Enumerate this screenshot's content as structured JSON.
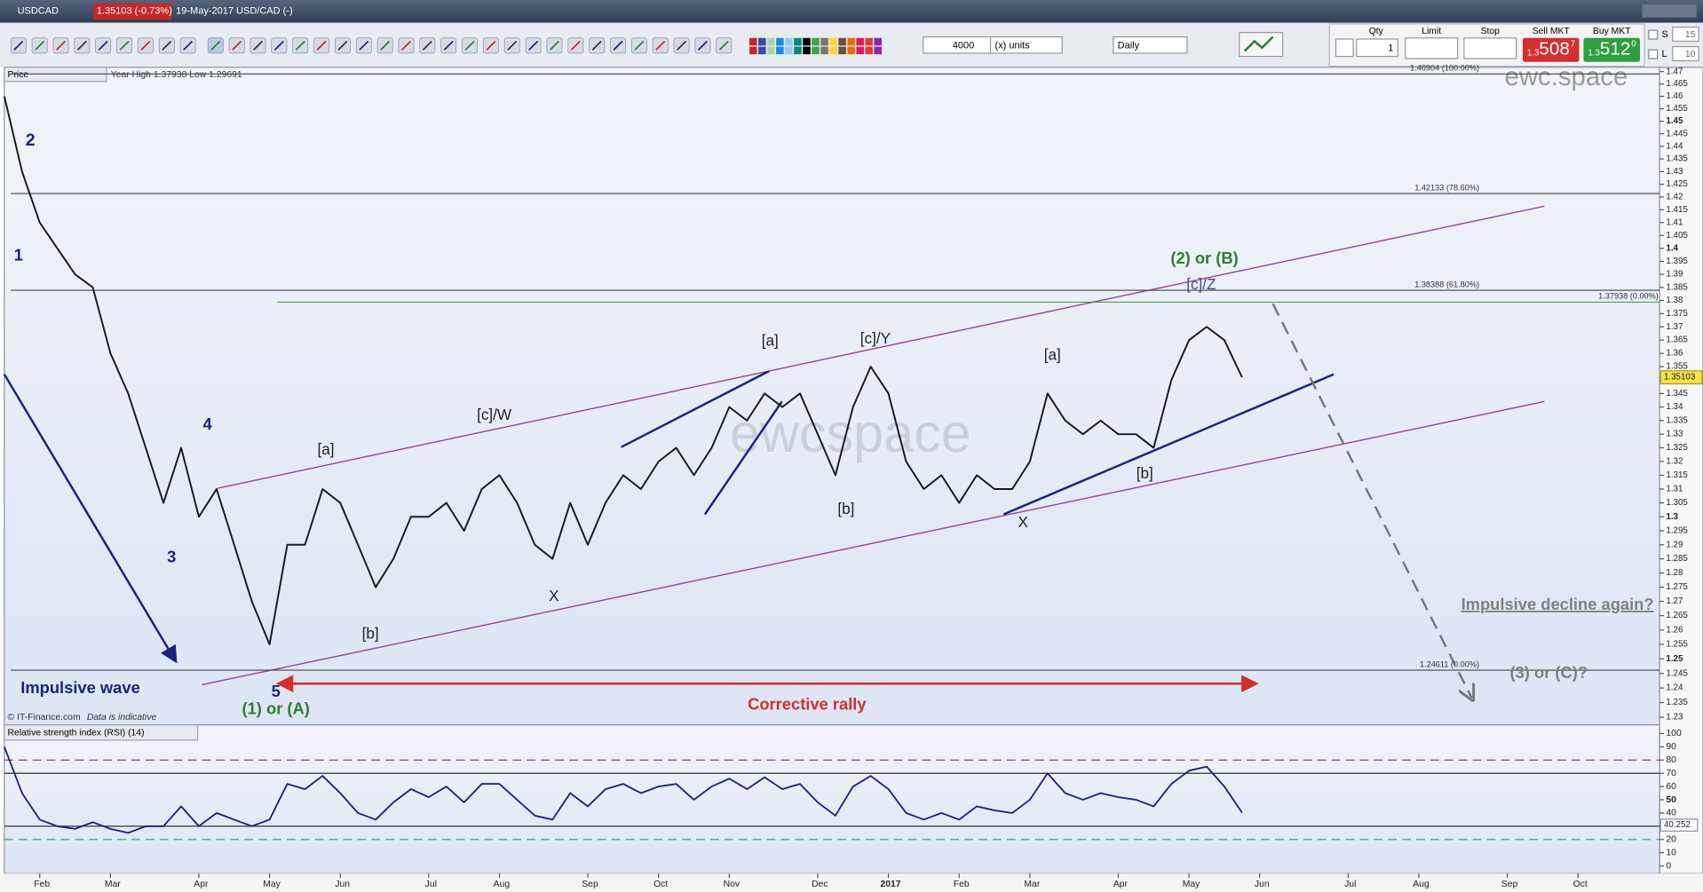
{
  "header": {
    "symbol": "USDCAD",
    "price_change": "1.35103 (-0.73%)",
    "info": "19-May-2017 USD/CAD (-)"
  },
  "toolbar": {
    "quantity": "4000",
    "units": "(x) units",
    "interval": "Daily",
    "qty_label": "Qty",
    "limit_label": "Limit",
    "stop_label": "Stop",
    "sell_label": "Sell MKT",
    "buy_label": "Buy MKT",
    "qty": "1",
    "sell_price": [
      "1.3",
      "508",
      "7"
    ],
    "buy_price": [
      "1.3",
      "512",
      "0"
    ],
    "s_label": "S",
    "s_value": "15",
    "l_label": "L",
    "l_value": "10"
  },
  "chart_data": [
    {
      "type": "line",
      "panel_label": "Price",
      "stats": "Year High 1.37938 Low 1.29691",
      "source": "© IT-Finance.com",
      "note": "Data is indicative",
      "watermark": "ewc.space",
      "watermark_center": "ewcspace",
      "log_scale": true,
      "series": [
        {
          "color": "#1a1a1a",
          "values": [
            1.46,
            1.43,
            1.41,
            1.4,
            1.39,
            1.385,
            1.36,
            1.345,
            1.325,
            1.305,
            1.325,
            1.3,
            1.31,
            1.29,
            1.27,
            1.255,
            1.29,
            1.29,
            1.31,
            1.305,
            1.29,
            1.275,
            1.285,
            1.3,
            1.3,
            1.305,
            1.295,
            1.31,
            1.315,
            1.305,
            1.29,
            1.285,
            1.305,
            1.29,
            1.305,
            1.315,
            1.31,
            1.32,
            1.325,
            1.315,
            1.325,
            1.34,
            1.335,
            1.345,
            1.34,
            1.345,
            1.33,
            1.315,
            1.34,
            1.355,
            1.345,
            1.32,
            1.31,
            1.315,
            1.305,
            1.315,
            1.31,
            1.31,
            1.32,
            1.345,
            1.335,
            1.33,
            1.335,
            1.33,
            1.33,
            1.325,
            1.35,
            1.365,
            1.37,
            1.365,
            1.35103,
            null,
            null,
            null,
            null,
            null,
            null,
            null,
            null,
            null,
            null,
            null,
            null,
            null,
            null,
            null,
            null,
            null,
            null,
            null,
            null,
            null,
            null
          ]
        }
      ],
      "ylim": [
        1.23,
        1.47
      ],
      "yticks": [
        1.23,
        1.235,
        1.24,
        1.245,
        1.25,
        1.255,
        1.26,
        1.265,
        1.27,
        1.275,
        1.28,
        1.285,
        1.29,
        1.295,
        1.3,
        1.305,
        1.31,
        1.315,
        1.32,
        1.325,
        1.33,
        1.335,
        1.34,
        1.345,
        1.35,
        1.355,
        1.36,
        1.365,
        1.37,
        1.375,
        1.38,
        1.385,
        1.39,
        1.395,
        1.4,
        1.405,
        1.41,
        1.415,
        1.42,
        1.425,
        1.43,
        1.435,
        1.44,
        1.445,
        1.45,
        1.455,
        1.46,
        1.465,
        1.47
      ],
      "levels": [
        {
          "value": 1.46904,
          "label": "1.46904 (100.00%)"
        },
        {
          "value": 1.42133,
          "label": "1.42133 (78.60%)"
        },
        {
          "value": 1.38388,
          "label": "1.38388 (61.80%)"
        },
        {
          "value": 1.37938,
          "label": "1.37938 (0.00%)"
        },
        {
          "value": 1.24611,
          "label": "1.24611 (0.00%)"
        }
      ],
      "annotations": [
        "2",
        "1",
        "4",
        "3",
        "5",
        "(1) or (A)",
        "Impulsive wave",
        "[a]",
        "[b]",
        "[c]/W",
        "X",
        "[a]",
        "[c]/Y",
        "[b]",
        "X",
        "[a]",
        "[b]",
        "[c]/Z",
        "(2) or (B)",
        "Corrective rally",
        "Impulsive decline again?",
        "(3) or (C)?"
      ]
    },
    {
      "type": "line",
      "title": "Relative strength index (RSI) (14)",
      "categories": [
        null,
        null,
        "Feb",
        null,
        null,
        null,
        "Mar",
        null,
        null,
        null,
        null,
        "Apr",
        null,
        null,
        null,
        "May",
        null,
        null,
        null,
        "Jun",
        null,
        null,
        null,
        null,
        "Jul",
        null,
        null,
        null,
        "Aug",
        null,
        null,
        null,
        null,
        "Sep",
        null,
        null,
        null,
        "Oct",
        null,
        null,
        null,
        "Nov",
        null,
        null,
        null,
        null,
        "Dec",
        null,
        null,
        null,
        "2017",
        null,
        null,
        null,
        "Feb",
        null,
        null,
        null,
        "Mar",
        null,
        null,
        null,
        null,
        "Apr",
        null,
        null,
        null,
        "May",
        null,
        null,
        null,
        "Jun",
        null,
        null,
        null,
        null,
        "Jul",
        null,
        null,
        null,
        "Aug",
        null,
        null,
        null,
        null,
        "Sep",
        null,
        null,
        null,
        "Oct",
        null,
        null,
        null
      ],
      "series": [
        {
          "color": "#1a237e",
          "values": [
            90,
            55,
            35,
            30,
            28,
            33,
            28,
            25,
            30,
            30,
            45,
            30,
            40,
            35,
            30,
            35,
            62,
            58,
            68,
            55,
            40,
            35,
            48,
            58,
            52,
            60,
            48,
            62,
            62,
            50,
            38,
            35,
            55,
            45,
            58,
            62,
            55,
            60,
            62,
            50,
            60,
            66,
            58,
            67,
            58,
            62,
            48,
            38,
            60,
            68,
            58,
            40,
            35,
            40,
            35,
            45,
            42,
            40,
            50,
            70,
            55,
            50,
            55,
            52,
            50,
            45,
            62,
            72,
            75,
            60,
            40.252,
            null,
            null,
            null,
            null,
            null,
            null,
            null,
            null,
            null,
            null,
            null,
            null,
            null,
            null,
            null,
            null,
            null,
            null,
            null,
            null,
            null,
            null
          ]
        }
      ],
      "ylim": [
        0,
        100
      ],
      "yticks": [
        0,
        10,
        20,
        30,
        40,
        50,
        60,
        70,
        80,
        90,
        100
      ],
      "levels": [
        {
          "value": 80,
          "color": "#a0406a",
          "dashed": true
        },
        {
          "value": 70,
          "color": "#333333",
          "dashed": false
        },
        {
          "value": 30,
          "color": "#333333",
          "dashed": false
        },
        {
          "value": 20,
          "color": "#2a9a6a",
          "dashed": true
        }
      ]
    }
  ]
}
